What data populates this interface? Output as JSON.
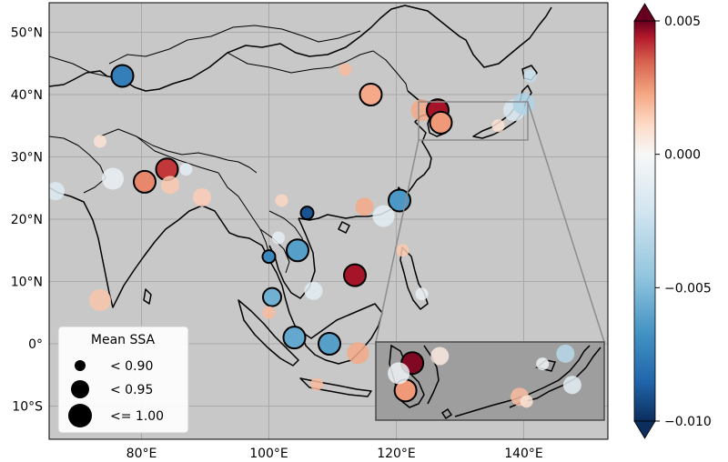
{
  "map": {
    "lat_labels": [
      "50°N",
      "40°N",
      "30°N",
      "20°N",
      "10°N",
      "0°",
      "10°S"
    ],
    "lon_labels": [
      "80°E",
      "100°E",
      "120°E",
      "140°E"
    ],
    "background": "#c8c8c8",
    "grid_color": "#a9a9a9",
    "coast_color": "#000000",
    "inset_box_color": "#8c8c8c"
  },
  "legend": {
    "title": "Mean SSA",
    "entries": [
      {
        "label": "< 0.90",
        "size": "small"
      },
      {
        "label": "< 0.95",
        "size": "medium"
      },
      {
        "label": "<= 1.00",
        "size": "large"
      }
    ]
  },
  "colorbar": {
    "cmap": "RdBu_r",
    "tick_labels": [
      "0.005",
      "0.000",
      "−0.005",
      "−0.010"
    ],
    "tick_values": [
      0.005,
      0.0,
      -0.005,
      -0.01
    ],
    "vmin": -0.01,
    "vmax": 0.005,
    "extend": "both"
  },
  "chart_data": {
    "type": "scatter",
    "sites": [
      {
        "name": "site-kazakhstan",
        "lon": 77,
        "lat": 43,
        "value": -0.0075,
        "ssa": "large",
        "outline": true
      },
      {
        "name": "site-mongolia",
        "lon": 112,
        "lat": 44,
        "value": 0.0018,
        "ssa": "small",
        "outline": false
      },
      {
        "name": "site-beijing",
        "lon": 116,
        "lat": 40,
        "value": 0.0022,
        "ssa": "large",
        "outline": true
      },
      {
        "name": "site-korea-a",
        "lon": 124,
        "lat": 37.5,
        "value": 0.0022,
        "ssa": "large",
        "outline": false
      },
      {
        "name": "site-korea-b",
        "lon": 126.5,
        "lat": 37.5,
        "value": 0.0045,
        "ssa": "large",
        "outline": true
      },
      {
        "name": "site-korea-c",
        "lon": 127,
        "lat": 35.5,
        "value": 0.0025,
        "ssa": "large",
        "outline": true
      },
      {
        "name": "site-japan-a",
        "lon": 138.5,
        "lat": 37.5,
        "value": -0.0018,
        "ssa": "large",
        "outline": false
      },
      {
        "name": "site-japan-b",
        "lon": 140,
        "lat": 38.5,
        "value": -0.0035,
        "ssa": "large",
        "outline": false
      },
      {
        "name": "site-japan-c",
        "lon": 141,
        "lat": 43,
        "value": -0.0025,
        "ssa": "small",
        "outline": false
      },
      {
        "name": "site-japan-d",
        "lon": 136,
        "lat": 35,
        "value": 0.0008,
        "ssa": "small",
        "outline": false
      },
      {
        "name": "site-pakistan-a",
        "lon": 66.5,
        "lat": 24.5,
        "value": -0.0015,
        "ssa": "medium",
        "outline": false
      },
      {
        "name": "site-pakistan-b",
        "lon": 73.5,
        "lat": 32.5,
        "value": 0.0008,
        "ssa": "small",
        "outline": false
      },
      {
        "name": "site-india-a",
        "lon": 75.5,
        "lat": 26.5,
        "value": -0.0008,
        "ssa": "large",
        "outline": false
      },
      {
        "name": "site-india-b",
        "lon": 80.5,
        "lat": 26,
        "value": 0.0028,
        "ssa": "large",
        "outline": true
      },
      {
        "name": "site-nepal-a",
        "lon": 84,
        "lat": 28,
        "value": 0.004,
        "ssa": "large",
        "outline": true
      },
      {
        "name": "site-nepal-b",
        "lon": 84.5,
        "lat": 25.5,
        "value": 0.0015,
        "ssa": "medium",
        "outline": false
      },
      {
        "name": "site-nepal-c",
        "lon": 87,
        "lat": 28,
        "value": -0.0012,
        "ssa": "small",
        "outline": false
      },
      {
        "name": "site-india-c",
        "lon": 89.5,
        "lat": 23.5,
        "value": 0.0014,
        "ssa": "medium",
        "outline": false
      },
      {
        "name": "site-india-south",
        "lon": 73.5,
        "lat": 7,
        "value": 0.0016,
        "ssa": "large",
        "outline": false
      },
      {
        "name": "site-kunming",
        "lon": 102,
        "lat": 23,
        "value": 0.0012,
        "ssa": "small",
        "outline": false
      },
      {
        "name": "site-laos-a",
        "lon": 106,
        "lat": 21,
        "value": -0.009,
        "ssa": "small",
        "outline": true
      },
      {
        "name": "site-taiwan",
        "lon": 120.5,
        "lat": 23,
        "value": -0.0065,
        "ssa": "large",
        "outline": true
      },
      {
        "name": "site-taiwan-b",
        "lon": 118,
        "lat": 20.5,
        "value": -0.0012,
        "ssa": "large",
        "outline": false
      },
      {
        "name": "site-guangdong",
        "lon": 115,
        "lat": 22,
        "value": 0.0022,
        "ssa": "medium",
        "outline": false
      },
      {
        "name": "site-indochina-a",
        "lon": 104.5,
        "lat": 15,
        "value": -0.0062,
        "ssa": "large",
        "outline": true
      },
      {
        "name": "site-indochina-b",
        "lon": 100,
        "lat": 14,
        "value": -0.0072,
        "ssa": "small",
        "outline": true
      },
      {
        "name": "site-indochina-c",
        "lon": 101.5,
        "lat": 17,
        "value": -0.001,
        "ssa": "small",
        "outline": false
      },
      {
        "name": "site-scs",
        "lon": 113.5,
        "lat": 11,
        "value": 0.0045,
        "ssa": "large",
        "outline": true
      },
      {
        "name": "site-vietnam",
        "lon": 107,
        "lat": 8.5,
        "value": -0.0012,
        "ssa": "medium",
        "outline": false
      },
      {
        "name": "site-gulf-thailand",
        "lon": 100.5,
        "lat": 7.5,
        "value": -0.0055,
        "ssa": "medium",
        "outline": true
      },
      {
        "name": "site-malaya",
        "lon": 100,
        "lat": 5,
        "value": 0.0018,
        "ssa": "small",
        "outline": false
      },
      {
        "name": "site-singapore",
        "lon": 104,
        "lat": 1,
        "value": -0.0058,
        "ssa": "large",
        "outline": true
      },
      {
        "name": "site-borneo-a",
        "lon": 109.5,
        "lat": 0,
        "value": -0.0062,
        "ssa": "large",
        "outline": true
      },
      {
        "name": "site-borneo-b",
        "lon": 114,
        "lat": -1.5,
        "value": 0.0022,
        "ssa": "large",
        "outline": false
      },
      {
        "name": "site-java",
        "lon": 107.5,
        "lat": -6.5,
        "value": 0.0018,
        "ssa": "small",
        "outline": false
      },
      {
        "name": "site-philippines",
        "lon": 124,
        "lat": 8,
        "value": -0.0008,
        "ssa": "small",
        "outline": false
      },
      {
        "name": "site-philippines-b",
        "lon": 121,
        "lat": 15,
        "value": 0.0015,
        "ssa": "small",
        "outline": false
      }
    ],
    "inset_sites": [
      {
        "name": "inset-korea-red",
        "x": 0.16,
        "y": 0.27,
        "value": 0.0048,
        "ssa": "large",
        "outline": true
      },
      {
        "name": "inset-korea-orange",
        "x": 0.13,
        "y": 0.62,
        "value": 0.0025,
        "ssa": "large",
        "outline": true
      },
      {
        "name": "inset-korea-light-a",
        "x": 0.1,
        "y": 0.4,
        "value": -0.0006,
        "ssa": "large",
        "outline": false
      },
      {
        "name": "inset-korea-light-b",
        "x": 0.28,
        "y": 0.18,
        "value": 0.0005,
        "ssa": "medium",
        "outline": false
      },
      {
        "name": "inset-japan-a",
        "x": 0.63,
        "y": 0.7,
        "value": 0.0018,
        "ssa": "medium",
        "outline": false
      },
      {
        "name": "inset-japan-b",
        "x": 0.66,
        "y": 0.76,
        "value": 0.0008,
        "ssa": "small",
        "outline": false
      },
      {
        "name": "inset-japan-c",
        "x": 0.83,
        "y": 0.15,
        "value": -0.0032,
        "ssa": "medium",
        "outline": false
      },
      {
        "name": "inset-japan-d",
        "x": 0.73,
        "y": 0.28,
        "value": -0.0005,
        "ssa": "small",
        "outline": false
      },
      {
        "name": "inset-japan-e",
        "x": 0.86,
        "y": 0.55,
        "value": -0.0012,
        "ssa": "medium",
        "outline": false
      }
    ]
  }
}
